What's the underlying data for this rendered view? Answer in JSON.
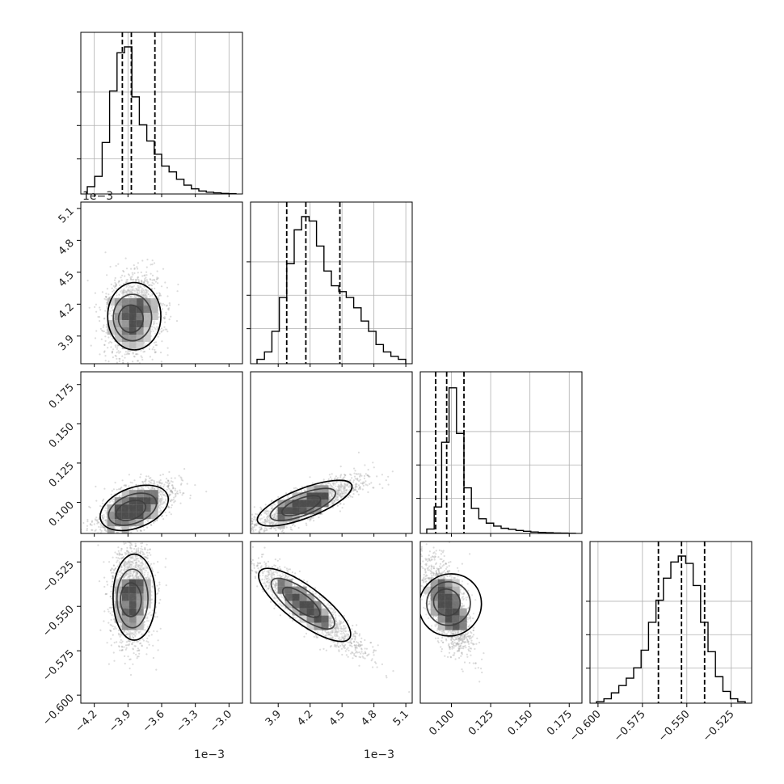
{
  "chart_data": {
    "type": "corner",
    "grid": true,
    "histogram_quantile_lines": {
      "p0": [
        -3.95,
        3.98,
        0.09,
        -0.566
      ],
      "p1": [
        -3.87,
        4.16,
        0.097,
        -0.553
      ],
      "p2": [
        -3.66,
        4.48,
        0.108,
        -0.54
      ]
    },
    "parameters": [
      {
        "range": [
          -4.32,
          -2.88
        ],
        "ticks": [
          -4.2,
          -3.9,
          -3.6,
          -3.3,
          -3.0
        ],
        "tick_labels": [
          "−4.2",
          "−3.9",
          "−3.6",
          "−3.3",
          "−3.0"
        ],
        "offset_label": "1e−3",
        "hist": [
          0.05,
          0.12,
          0.35,
          0.7,
          0.96,
          1.0,
          0.66,
          0.47,
          0.36,
          0.27,
          0.19,
          0.15,
          0.1,
          0.06,
          0.035,
          0.02,
          0.012,
          0.008,
          0.004,
          0.002
        ]
      },
      {
        "range": [
          3.64,
          5.16
        ],
        "ticks": [
          3.9,
          4.2,
          4.5,
          4.8,
          5.1
        ],
        "tick_labels": [
          "3.9",
          "4.2",
          "4.5",
          "4.8",
          "5.1"
        ],
        "offset_label": "1e−3",
        "hist": [
          0.03,
          0.08,
          0.22,
          0.45,
          0.68,
          0.91,
          1.0,
          0.97,
          0.8,
          0.63,
          0.53,
          0.49,
          0.45,
          0.38,
          0.29,
          0.22,
          0.13,
          0.08,
          0.05,
          0.03
        ]
      },
      {
        "range": [
          0.0802,
          0.1831
        ],
        "ticks": [
          0.1,
          0.125,
          0.15,
          0.175
        ],
        "tick_labels": [
          "0.100",
          "0.125",
          "0.150",
          "0.175"
        ],
        "offset_label": "",
        "hist": [
          0.03,
          0.18,
          0.62,
          0.99,
          0.68,
          0.31,
          0.17,
          0.1,
          0.07,
          0.05,
          0.035,
          0.028,
          0.02,
          0.015,
          0.01,
          0.007,
          0.005,
          0.003,
          0.002,
          0.001
        ]
      },
      {
        "range": [
          -0.6045,
          -0.5135
        ],
        "ticks": [
          -0.6,
          -0.575,
          -0.55,
          -0.525
        ],
        "tick_labels": [
          "−0.600",
          "−0.575",
          "−0.550",
          "−0.525"
        ],
        "offset_label": "",
        "hist": [
          0.01,
          0.03,
          0.07,
          0.12,
          0.17,
          0.24,
          0.36,
          0.55,
          0.7,
          0.85,
          0.96,
          1.0,
          0.95,
          0.8,
          0.55,
          0.35,
          0.18,
          0.08,
          0.03,
          0.01
        ]
      }
    ],
    "pairs": [
      {
        "row": 1,
        "col": 0,
        "center": [
          -3.89,
          4.05
        ],
        "spread": [
          0.12,
          0.18
        ],
        "corr": 0.1,
        "tilt": 0.0
      },
      {
        "row": 2,
        "col": 0,
        "center": [
          -3.89,
          0.094
        ],
        "spread": [
          0.16,
          0.008
        ],
        "corr": 0.55,
        "tilt": 0.0
      },
      {
        "row": 2,
        "col": 1,
        "center": [
          4.1,
          0.097
        ],
        "spread": [
          0.25,
          0.008
        ],
        "corr": 0.82,
        "tilt": 0.0
      },
      {
        "row": 3,
        "col": 0,
        "center": [
          -3.89,
          -0.547
        ],
        "spread": [
          0.09,
          0.014
        ],
        "corr": 0.05,
        "tilt": 0.0
      },
      {
        "row": 3,
        "col": 1,
        "center": [
          4.1,
          -0.547
        ],
        "spread": [
          0.24,
          0.012
        ],
        "corr": -0.9,
        "tilt": 0.0
      },
      {
        "row": 3,
        "col": 2,
        "center": [
          0.096,
          -0.547
        ],
        "spread": [
          0.007,
          0.012
        ],
        "corr": -0.55,
        "tilt": 0.0
      }
    ]
  }
}
